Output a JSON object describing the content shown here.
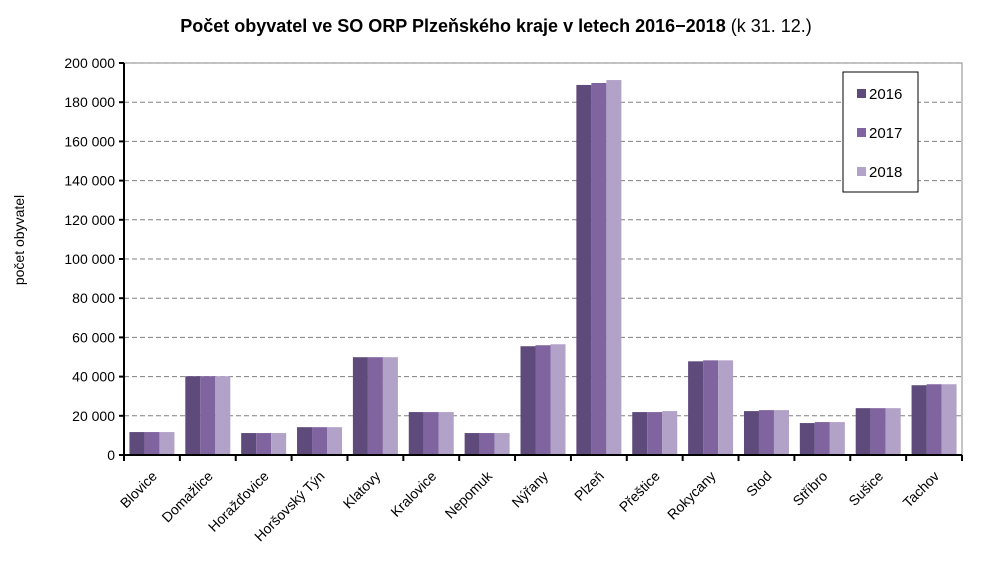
{
  "chart_data": {
    "type": "bar",
    "title": "Počet obyvatel ve SO ORP Plzeňského kraje v letech 2016−2018",
    "subtitle": "(k 31. 12.)",
    "xlabel": "",
    "ylabel": "počet obyvatel",
    "ylim": [
      0,
      200000
    ],
    "yticks": [
      0,
      20000,
      40000,
      60000,
      80000,
      100000,
      120000,
      140000,
      160000,
      180000,
      200000
    ],
    "ytick_labels": [
      "0",
      "20 000",
      "40 000",
      "60 000",
      "80 000",
      "100 000",
      "120 000",
      "140 000",
      "160 000",
      "180 000",
      "200 000"
    ],
    "grid": true,
    "legend_position": "top-right",
    "categories": [
      "Blovice",
      "Domažlice",
      "Horažďovice",
      "Horšovský Týn",
      "Klatovy",
      "Kralovice",
      "Nepomuk",
      "Nýřany",
      "Plzeň",
      "Přeštice",
      "Rokycany",
      "Stod",
      "Stříbro",
      "Sušice",
      "Tachov"
    ],
    "series": [
      {
        "name": "2016",
        "color": "#5f4b7b",
        "values": [
          11700,
          40200,
          11200,
          14200,
          49900,
          21900,
          11200,
          55500,
          188800,
          21900,
          47800,
          22400,
          16300,
          23900,
          35600
        ]
      },
      {
        "name": "2017",
        "color": "#8064a0",
        "values": [
          11700,
          40200,
          11200,
          14200,
          49900,
          21900,
          11200,
          56000,
          189800,
          21900,
          48300,
          22900,
          16800,
          23900,
          36100
        ]
      },
      {
        "name": "2018",
        "color": "#b2a2c8",
        "values": [
          11700,
          40200,
          11200,
          14200,
          49900,
          21900,
          11200,
          56500,
          191300,
          22400,
          48300,
          22900,
          16800,
          23900,
          36100
        ]
      }
    ]
  }
}
